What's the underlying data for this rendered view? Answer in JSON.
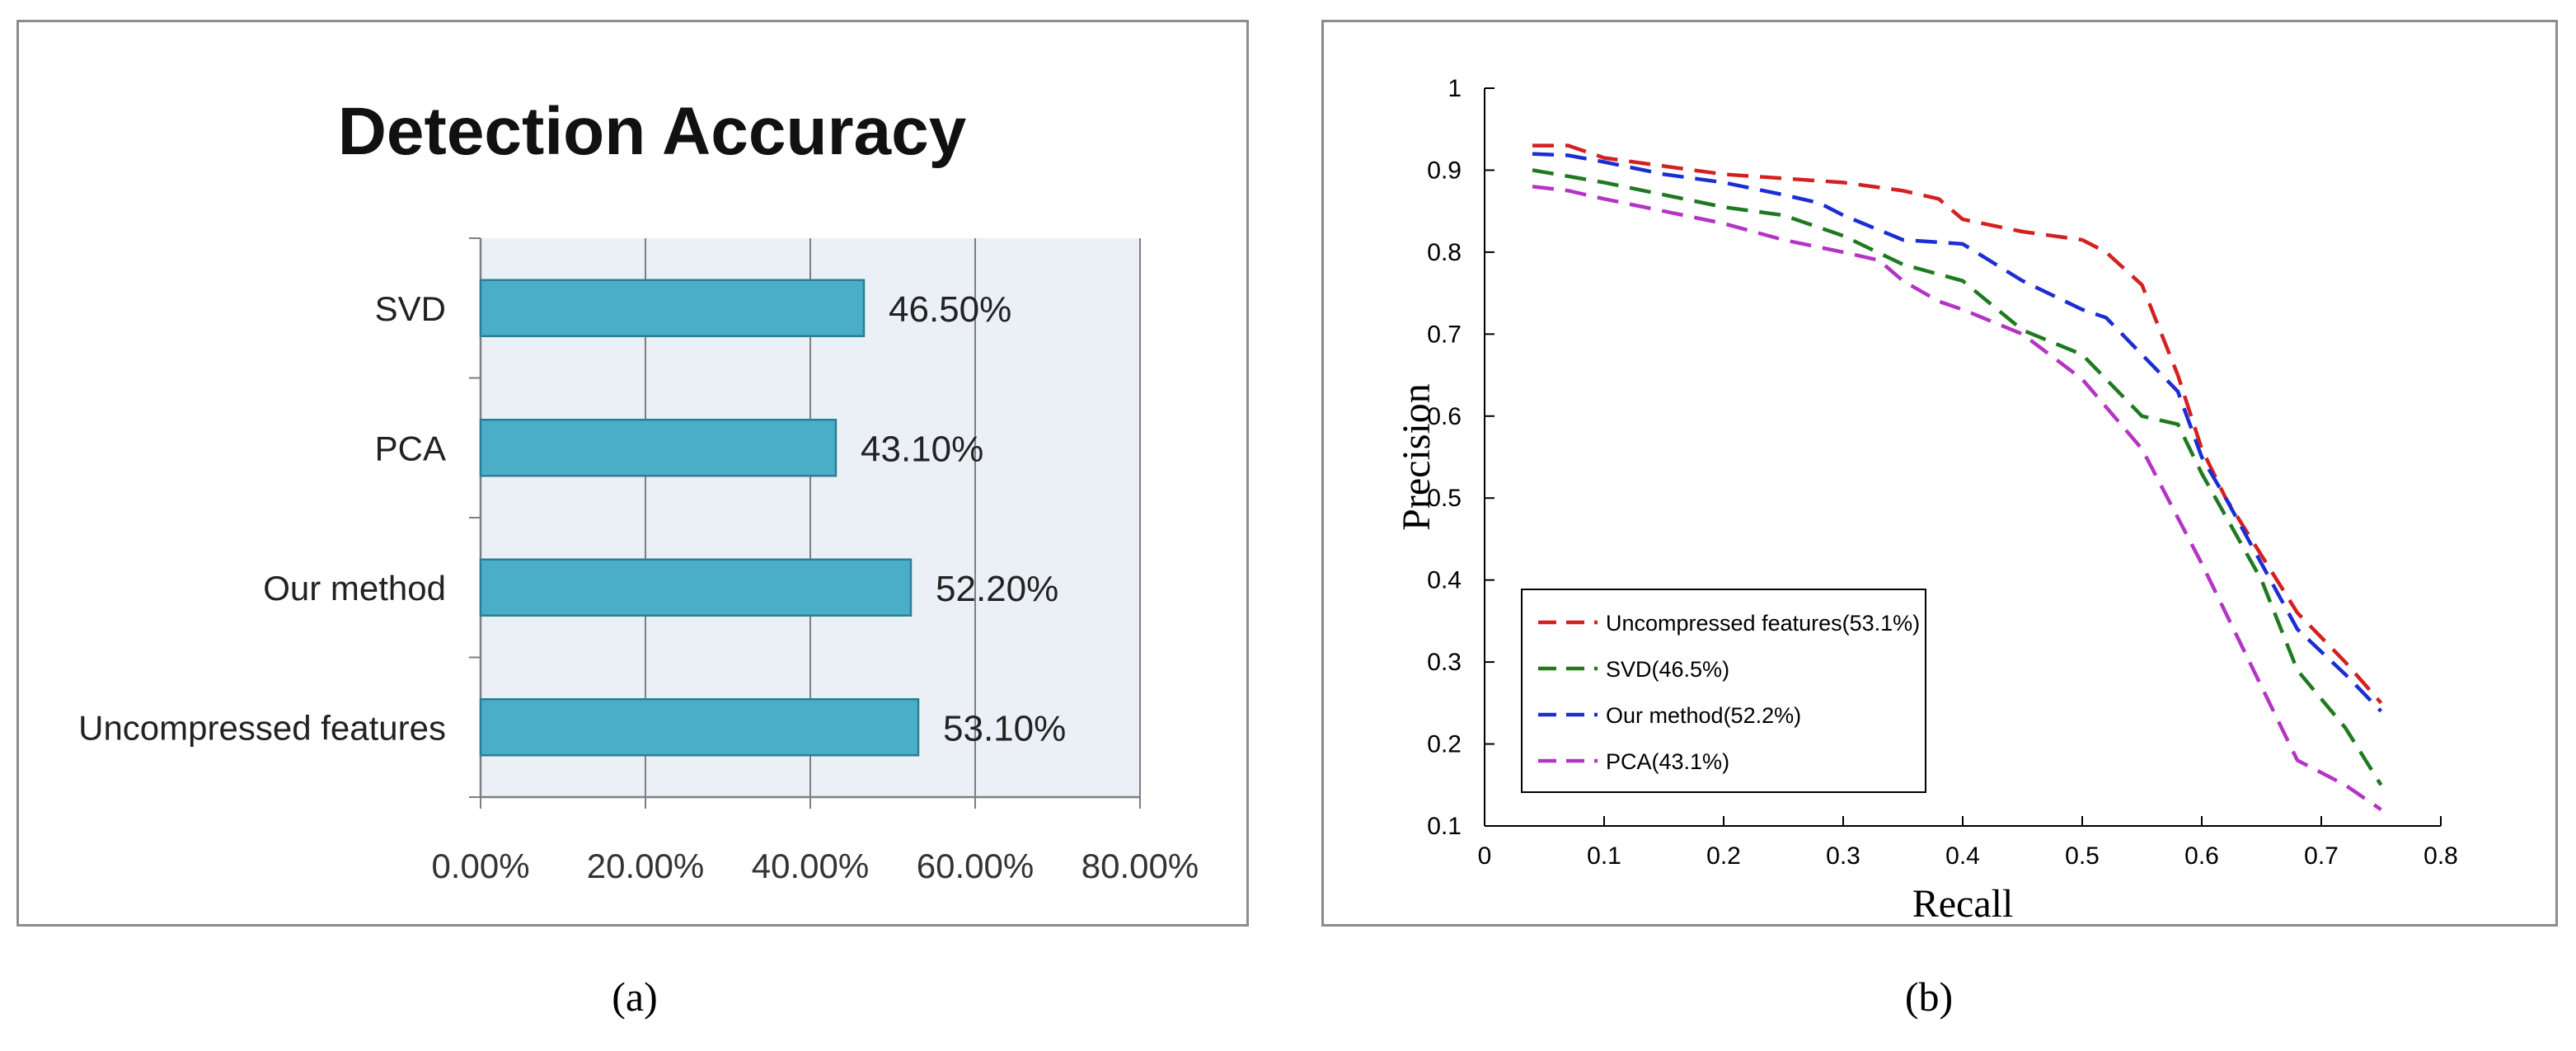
{
  "chart_data": [
    {
      "type": "bar",
      "orientation": "horizontal",
      "title": "Detection Accuracy",
      "categories": [
        "SVD",
        "PCA",
        "Our method",
        "Uncompressed features"
      ],
      "values": [
        46.5,
        43.1,
        52.2,
        53.1
      ],
      "value_labels": [
        "46.50%",
        "43.10%",
        "52.20%",
        "53.10%"
      ],
      "xlim": [
        0,
        80
      ],
      "xticks": [
        "0.00%",
        "20.00%",
        "40.00%",
        "60.00%",
        "80.00%"
      ],
      "xlabel": "",
      "ylabel": "",
      "grid": true,
      "colors": {
        "bar": "#4aaec8",
        "bar_edge": "#2a7f96",
        "plot_bg": "#eaf0f6"
      }
    },
    {
      "type": "line",
      "xlabel": "Recall",
      "ylabel": "Precision",
      "xlim": [
        0,
        0.8
      ],
      "ylim": [
        0.1,
        1
      ],
      "xticks": [
        "0",
        "0.1",
        "0.2",
        "0.3",
        "0.4",
        "0.5",
        "0.6",
        "0.7",
        "0.8"
      ],
      "yticks": [
        "0.1",
        "0.2",
        "0.3",
        "0.4",
        "0.5",
        "0.6",
        "0.7",
        "0.8",
        "0.9",
        "1"
      ],
      "legend_position": "bottom-left",
      "series": [
        {
          "name": "Uncompressed features(53.1%)",
          "color": "#d42020",
          "x": [
            0.04,
            0.07,
            0.1,
            0.15,
            0.2,
            0.25,
            0.3,
            0.35,
            0.38,
            0.4,
            0.45,
            0.5,
            0.52,
            0.55,
            0.58,
            0.6,
            0.62,
            0.65,
            0.68,
            0.72,
            0.75
          ],
          "y": [
            0.93,
            0.93,
            0.915,
            0.905,
            0.895,
            0.89,
            0.885,
            0.875,
            0.865,
            0.84,
            0.825,
            0.815,
            0.8,
            0.76,
            0.65,
            0.56,
            0.5,
            0.43,
            0.36,
            0.3,
            0.25
          ]
        },
        {
          "name": "SVD(46.5%)",
          "color": "#1f7a1f",
          "x": [
            0.04,
            0.1,
            0.15,
            0.2,
            0.25,
            0.3,
            0.35,
            0.4,
            0.45,
            0.5,
            0.55,
            0.58,
            0.6,
            0.65,
            0.68,
            0.72,
            0.75
          ],
          "y": [
            0.9,
            0.885,
            0.87,
            0.855,
            0.845,
            0.82,
            0.785,
            0.765,
            0.705,
            0.675,
            0.6,
            0.59,
            0.53,
            0.4,
            0.29,
            0.22,
            0.15
          ]
        },
        {
          "name": "Our method(52.2%)",
          "color": "#1c2ed2",
          "x": [
            0.04,
            0.07,
            0.1,
            0.15,
            0.2,
            0.25,
            0.28,
            0.3,
            0.35,
            0.4,
            0.45,
            0.5,
            0.52,
            0.55,
            0.58,
            0.6,
            0.62,
            0.65,
            0.68,
            0.72,
            0.75
          ],
          "y": [
            0.92,
            0.918,
            0.91,
            0.895,
            0.885,
            0.87,
            0.86,
            0.845,
            0.815,
            0.81,
            0.765,
            0.73,
            0.72,
            0.675,
            0.63,
            0.55,
            0.5,
            0.42,
            0.34,
            0.285,
            0.24
          ]
        },
        {
          "name": "PCA(43.1%)",
          "color": "#b434c4",
          "x": [
            0.04,
            0.07,
            0.1,
            0.15,
            0.2,
            0.25,
            0.3,
            0.33,
            0.35,
            0.38,
            0.4,
            0.45,
            0.5,
            0.55,
            0.6,
            0.65,
            0.68,
            0.72,
            0.75
          ],
          "y": [
            0.88,
            0.875,
            0.865,
            0.85,
            0.835,
            0.815,
            0.8,
            0.79,
            0.765,
            0.74,
            0.73,
            0.7,
            0.645,
            0.56,
            0.42,
            0.27,
            0.18,
            0.15,
            0.12
          ]
        }
      ]
    }
  ],
  "captions": {
    "a": "(a)",
    "b": "(b)"
  }
}
